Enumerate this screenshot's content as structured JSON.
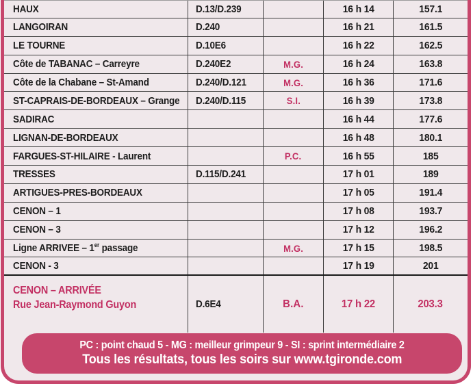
{
  "colors": {
    "tableBg": "#f0e8eb",
    "accentFill": "#c7466c",
    "accentText": "#c22f62",
    "lineDark": "#3c3c3c"
  },
  "table": {
    "rows": [
      {
        "place": "HAUX",
        "road": "D.13/D.239",
        "marker": "",
        "time": "16 h 14",
        "km": "157.1"
      },
      {
        "place": "LANGOIRAN",
        "road": "D.240",
        "marker": "",
        "time": "16 h 21",
        "km": "161.5"
      },
      {
        "place": "LE TOURNE",
        "road": "D.10E6",
        "marker": "",
        "time": "16 h 22",
        "km": "162.5"
      },
      {
        "place": "Côte de TABANAC – Carreyre",
        "road": "D.240E2",
        "marker": "M.G.",
        "time": "16 h 24",
        "km": "163.8"
      },
      {
        "place": "Côte de la Chabane – St-Amand",
        "road": "D.240/D.121",
        "marker": "M.G.",
        "time": "16 h 36",
        "km": "171.6"
      },
      {
        "place": "ST-CAPRAIS-DE-BORDEAUX – Grange",
        "road": "D.240/D.115",
        "marker": "S.I.",
        "time": "16 h 39",
        "km": "173.8"
      },
      {
        "place": "SADIRAC",
        "road": "",
        "marker": "",
        "time": "16 h 44",
        "km": "177.6"
      },
      {
        "place": "LIGNAN-DE-BORDEAUX",
        "road": "",
        "marker": "",
        "time": "16 h 48",
        "km": "180.1"
      },
      {
        "place": "FARGUES-ST-HILAIRE - Laurent",
        "road": "",
        "marker": "P.C.",
        "time": "16 h 55",
        "km": "185"
      },
      {
        "place": "TRESSES",
        "road": "D.115/D.241",
        "marker": "",
        "time": "17 h 01",
        "km": "189"
      },
      {
        "place": "ARTIGUES-PRES-BORDEAUX",
        "road": "",
        "marker": "",
        "time": "17 h 05",
        "km": "191.4"
      },
      {
        "place": "CENON – 1",
        "road": "",
        "marker": "",
        "time": "17 h 08",
        "km": "193.7"
      },
      {
        "place": "CENON – 3",
        "road": "",
        "marker": "",
        "time": "17 h 12",
        "km": "196.2"
      },
      {
        "place": "Ligne ARRIVEE – 1",
        "place_sup": "er",
        "place_post": " passage",
        "road": "",
        "marker": "M.G.",
        "time": "17 h 15",
        "km": "198.5"
      },
      {
        "place": "CENON - 3",
        "road": "",
        "marker": "",
        "time": "17 h 19",
        "km": "201"
      },
      {
        "place_lines": [
          "CENON – ARRIVÉE",
          "Rue Jean-Raymond Guyon"
        ],
        "road": "D.6E4",
        "marker": "B.A.",
        "time": "17 h 22",
        "km": "203.3",
        "highlight": true
      }
    ]
  },
  "footer": {
    "legend": "PC : point chaud 5 - MG : meilleur grimpeur 9 - SI : sprint intermédiaire 2",
    "promo": "Tous les résultats, tous les soirs sur www.tgironde.com"
  }
}
